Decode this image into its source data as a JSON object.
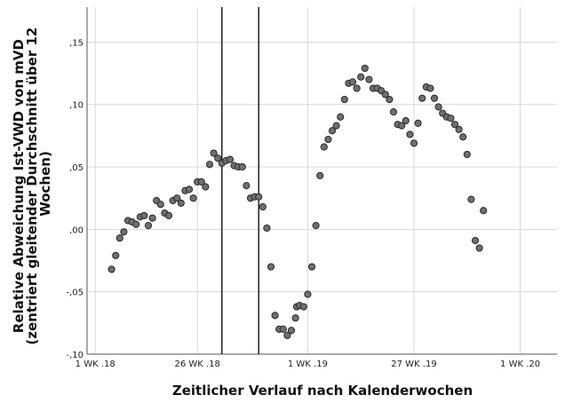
{
  "chart_data": {
    "type": "scatter",
    "title": "",
    "xlabel": "Zeitlicher Verlauf nach Kalenderwochen",
    "ylabel_lines": [
      "Relative Abweichung Ist-VWD von mVD",
      "(zentriert gleitender Durchschnitt über 12",
      "Wochen)"
    ],
    "x_ticks": [
      {
        "value": 0,
        "label": "1 WK .18"
      },
      {
        "value": 25,
        "label": "26 WK .18"
      },
      {
        "value": 52,
        "label": "1 WK .19"
      },
      {
        "value": 78,
        "label": "27 WK .19"
      },
      {
        "value": 104,
        "label": "1 WK .20"
      }
    ],
    "y_ticks": [
      {
        "value": -0.1,
        "label": "-,10"
      },
      {
        "value": -0.05,
        "label": "-,05"
      },
      {
        "value": 0.0,
        "label": ",00"
      },
      {
        "value": 0.05,
        "label": ",05"
      },
      {
        "value": 0.1,
        "label": ",10"
      },
      {
        "value": 0.15,
        "label": ",15"
      }
    ],
    "xlim": [
      -2,
      113
    ],
    "ylim": [
      -0.1,
      0.178
    ],
    "grid": true,
    "reference_lines_x": [
      31,
      40
    ],
    "points": [
      [
        4,
        -0.032
      ],
      [
        5,
        -0.021
      ],
      [
        6,
        -0.007
      ],
      [
        7,
        -0.002
      ],
      [
        8,
        0.007
      ],
      [
        9,
        0.006
      ],
      [
        10,
        0.004
      ],
      [
        11,
        0.01
      ],
      [
        12,
        0.011
      ],
      [
        13,
        0.003
      ],
      [
        14,
        0.009
      ],
      [
        15,
        0.023
      ],
      [
        16,
        0.02
      ],
      [
        17,
        0.013
      ],
      [
        18,
        0.011
      ],
      [
        19,
        0.023
      ],
      [
        20,
        0.025
      ],
      [
        21,
        0.021
      ],
      [
        22,
        0.031
      ],
      [
        23,
        0.032
      ],
      [
        24,
        0.025
      ],
      [
        25,
        0.038
      ],
      [
        26,
        0.038
      ],
      [
        27,
        0.034
      ],
      [
        28,
        0.052
      ],
      [
        29,
        0.061
      ],
      [
        30,
        0.057
      ],
      [
        31,
        0.053
      ],
      [
        32,
        0.055
      ],
      [
        33,
        0.056
      ],
      [
        34,
        0.051
      ],
      [
        35,
        0.05
      ],
      [
        36,
        0.05
      ],
      [
        37,
        0.035
      ],
      [
        38,
        0.025
      ],
      [
        39,
        0.026
      ],
      [
        40,
        0.026
      ],
      [
        41,
        0.018
      ],
      [
        42,
        0.001
      ],
      [
        43,
        -0.03
      ],
      [
        44,
        -0.069
      ],
      [
        45,
        -0.08
      ],
      [
        46,
        -0.08
      ],
      [
        47,
        -0.085
      ],
      [
        48,
        -0.081
      ],
      [
        49,
        -0.071
      ],
      [
        49.3,
        -0.062
      ],
      [
        50,
        -0.061
      ],
      [
        51,
        -0.062
      ],
      [
        52,
        -0.052
      ],
      [
        53,
        -0.03
      ],
      [
        54,
        0.003
      ],
      [
        55,
        0.043
      ],
      [
        56,
        0.066
      ],
      [
        57,
        0.072
      ],
      [
        58,
        0.079
      ],
      [
        59,
        0.083
      ],
      [
        60,
        0.09
      ],
      [
        61,
        0.104
      ],
      [
        62,
        0.117
      ],
      [
        63,
        0.118
      ],
      [
        64,
        0.113
      ],
      [
        65,
        0.122
      ],
      [
        66,
        0.129
      ],
      [
        67,
        0.12
      ],
      [
        68,
        0.113
      ],
      [
        69,
        0.113
      ],
      [
        70,
        0.111
      ],
      [
        71,
        0.108
      ],
      [
        72,
        0.104
      ],
      [
        73,
        0.094
      ],
      [
        74,
        0.084
      ],
      [
        75,
        0.083
      ],
      [
        76,
        0.087
      ],
      [
        77,
        0.076
      ],
      [
        78,
        0.069
      ],
      [
        79,
        0.085
      ],
      [
        80,
        0.105
      ],
      [
        81,
        0.114
      ],
      [
        82,
        0.113
      ],
      [
        83,
        0.105
      ],
      [
        84,
        0.098
      ],
      [
        85,
        0.093
      ],
      [
        86,
        0.09
      ],
      [
        87,
        0.089
      ],
      [
        88,
        0.084
      ],
      [
        89,
        0.08
      ],
      [
        90,
        0.074
      ],
      [
        91,
        0.06
      ],
      [
        92,
        0.024
      ],
      [
        93,
        -0.009
      ],
      [
        94,
        -0.015
      ],
      [
        95,
        0.015
      ]
    ]
  }
}
